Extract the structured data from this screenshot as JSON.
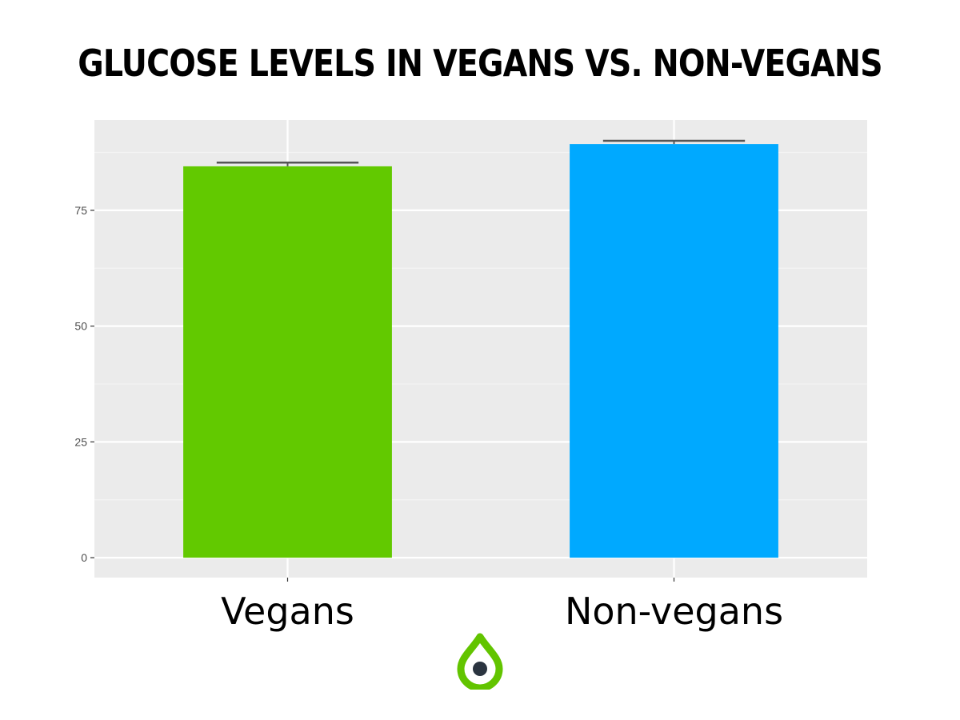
{
  "title": "GLUCOSE LEVELS IN VEGANS VS. NON-VEGANS",
  "colors": {
    "panel_background": "#ebebeb",
    "grid_major": "#ffffff",
    "grid_minor": "#f4f4f4",
    "tick_text": "#4d4d4d",
    "error_bar": "#555555",
    "logo_green": "#62c400",
    "logo_dot": "#2b3440"
  },
  "logo": {
    "icon": "droplet-eye-logo"
  },
  "chart_data": {
    "type": "bar",
    "title": "GLUCOSE LEVELS IN VEGANS VS. NON-VEGANS",
    "xlabel": "",
    "ylabel": "",
    "categories": [
      "Vegans",
      "Non-vegans"
    ],
    "values": [
      84.5,
      89.3
    ],
    "error_upper": [
      85.3,
      90.0
    ],
    "bar_colors": [
      "#62c900",
      "#00a9ff"
    ],
    "ylim": [
      -4.3,
      94.5
    ],
    "yticks": [
      0,
      25,
      50,
      75
    ],
    "ytick_labels": [
      "0",
      "25",
      "50",
      "75"
    ],
    "grid": true,
    "legend": "none"
  }
}
